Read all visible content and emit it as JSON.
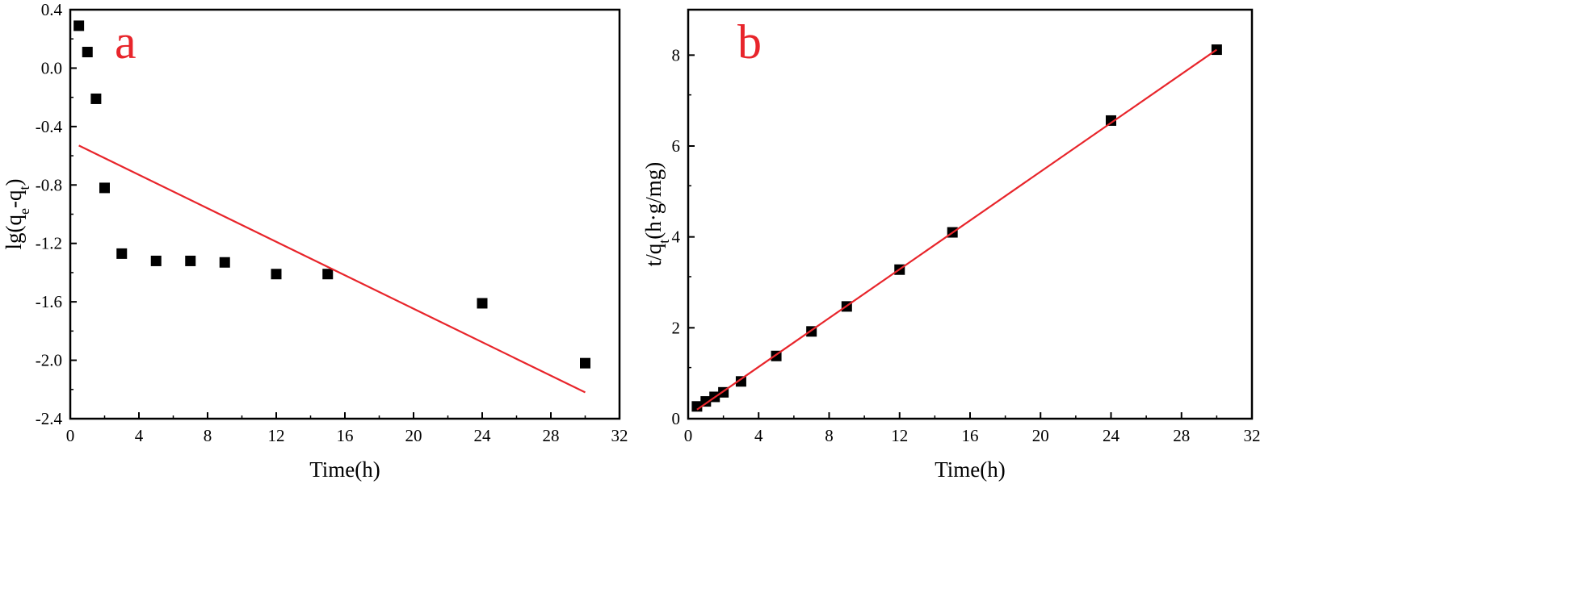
{
  "chart_data": [
    {
      "type": "scatter",
      "panel_label": "a",
      "xlabel": "Time(h)",
      "ylabel": {
        "main": "lg(q",
        "sub1": "e",
        "mid": "-q",
        "sub2": "t",
        "end": ")"
      },
      "xlim": [
        0,
        32
      ],
      "ylim": [
        -2.4,
        0.4
      ],
      "xticks": [
        "0",
        "4",
        "8",
        "12",
        "16",
        "20",
        "24",
        "28",
        "32"
      ],
      "yticks": [
        "-2.4",
        "-2.0",
        "-1.6",
        "-1.2",
        "-0.8",
        "-0.4",
        "0.0",
        "0.4"
      ],
      "grid": false,
      "legend": "none",
      "series": [
        {
          "kind": "points",
          "marker": "square",
          "color": "#000000",
          "x": [
            0.5,
            1,
            1.5,
            2,
            3,
            5,
            7,
            9,
            12,
            15,
            24,
            30
          ],
          "y": [
            0.29,
            0.11,
            -0.21,
            -0.82,
            -1.27,
            -1.32,
            -1.32,
            -1.33,
            -1.41,
            -1.41,
            -1.61,
            -2.02
          ]
        },
        {
          "kind": "fit-line",
          "color": "#e8252b",
          "x": [
            0.5,
            30
          ],
          "y": [
            -0.53,
            -2.22
          ]
        }
      ]
    },
    {
      "type": "scatter",
      "panel_label": "b",
      "xlabel": "Time(h)",
      "ylabel": {
        "main": "t/q",
        "sub1": "t",
        "end": "(h·g/mg)"
      },
      "xlim": [
        0,
        32
      ],
      "ylim": [
        0,
        9
      ],
      "xticks": [
        "0",
        "4",
        "8",
        "12",
        "16",
        "20",
        "24",
        "28",
        "32"
      ],
      "yticks": [
        "0",
        "2",
        "4",
        "6",
        "8"
      ],
      "grid": false,
      "legend": "none",
      "series": [
        {
          "kind": "points",
          "marker": "square",
          "color": "#000000",
          "x": [
            0.5,
            1,
            1.5,
            2,
            3,
            5,
            7,
            9,
            12,
            15,
            24,
            30
          ],
          "y": [
            0.27,
            0.38,
            0.48,
            0.58,
            0.82,
            1.38,
            1.92,
            2.47,
            3.28,
            4.1,
            6.56,
            8.12
          ]
        },
        {
          "kind": "fit-line",
          "color": "#e8252b",
          "x": [
            0.5,
            30
          ],
          "y": [
            0.2,
            8.12
          ]
        }
      ]
    }
  ]
}
